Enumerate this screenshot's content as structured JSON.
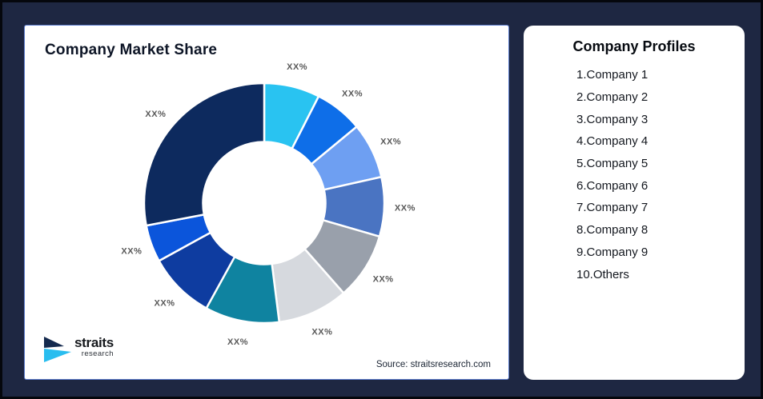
{
  "theme": {
    "background": "#1E2742",
    "frame_border": "#05070D",
    "card_background": "#FFFFFF",
    "left_card_border": "#5C7CCD"
  },
  "left_card": {
    "title": "Company Market Share",
    "source": "Source: straitsresearch.com",
    "logo": {
      "name": "straits",
      "sub": "research",
      "navy": "#14294E",
      "cyan": "#29BDEF"
    }
  },
  "right_card": {
    "title": "Company Profiles",
    "items": [
      "1.Company 1",
      "2.Company 2",
      "3.Company 3",
      "4.Company 4",
      "5.Company 5",
      "6.Company 6",
      "7.Company 7",
      "8.Company 8",
      "9.Company 9",
      "10.Others"
    ]
  },
  "chart_data": {
    "type": "pie",
    "subtype": "donut",
    "title": "Company Market Share",
    "categories": [
      "Company 1",
      "Company 2",
      "Company 3",
      "Company 4",
      "Company 5",
      "Company 6",
      "Company 7",
      "Company 8",
      "Company 9",
      "Others"
    ],
    "values": [
      7.5,
      6.5,
      7.5,
      8,
      9,
      9.5,
      10,
      9,
      5,
      28
    ],
    "values_estimated": true,
    "data_labels": [
      "XX%",
      "XX%",
      "XX%",
      "XX%",
      "XX%",
      "XX%",
      "XX%",
      "XX%",
      "XX%",
      "XX%"
    ],
    "colors": [
      "#29C3F1",
      "#0E6EE8",
      "#6E9FF2",
      "#4A74C2",
      "#99A0AB",
      "#D6D9DE",
      "#0F83A0",
      "#0E3CA0",
      "#0B55DB",
      "#0D2A5E"
    ],
    "start_angle_deg": 0,
    "direction": "clockwise",
    "inner_radius_ratio": 0.51,
    "separator_color": "#FFFFFF",
    "label_color": "#595959",
    "legend": "none"
  }
}
